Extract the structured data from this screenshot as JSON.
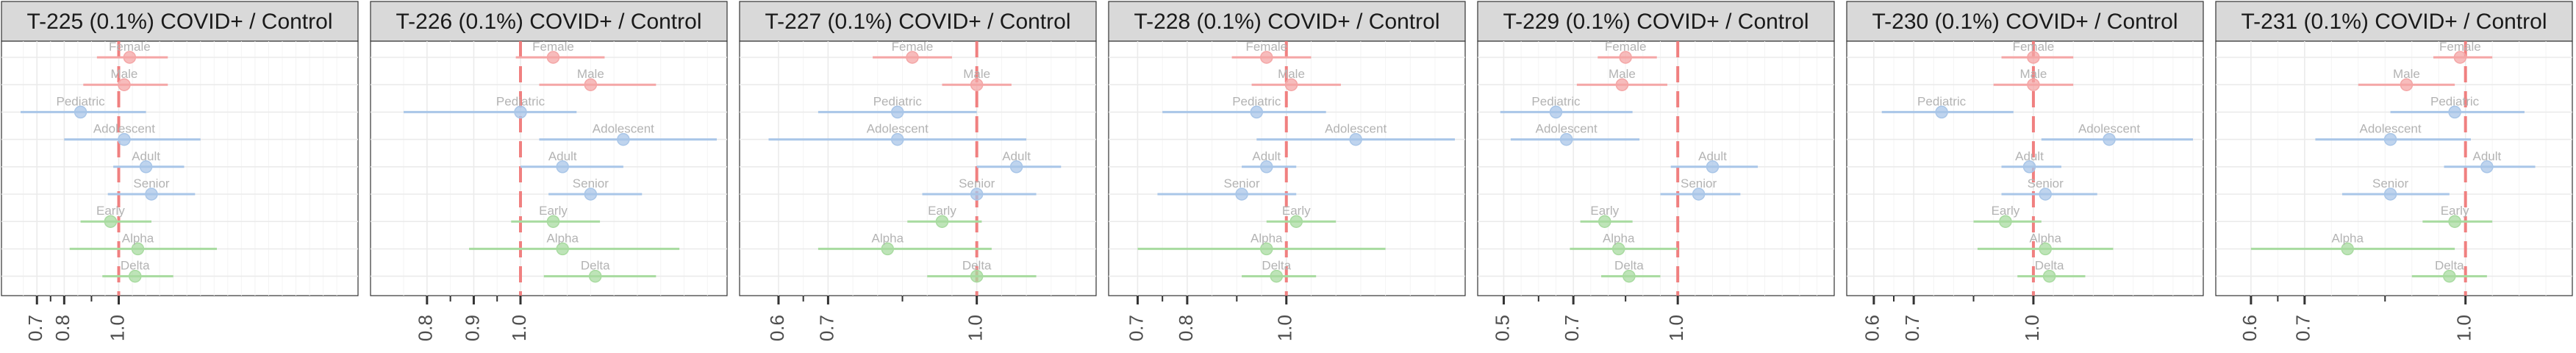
{
  "colors": {
    "sex": "#f4a6a6",
    "age": "#a9c6e8",
    "variant": "#a8dba0",
    "reference": "#f08080"
  },
  "row_labels": [
    "Female",
    "Male",
    "Pediatric",
    "Adolescent",
    "Adult",
    "Senior",
    "Early",
    "Alpha",
    "Delta"
  ],
  "row_groups": [
    "sex",
    "sex",
    "age",
    "age",
    "age",
    "age",
    "variant",
    "variant",
    "variant"
  ],
  "chart_data": [
    {
      "type": "scatter",
      "title": "T-225 (0.1%) COVID+ / Control",
      "xlim": [
        0.64,
        1.84
      ],
      "xticks": [
        0.7,
        0.8,
        1.0
      ],
      "tick_labels": [
        "0.7",
        "0.8",
        "1.0"
      ],
      "reference_x": 1.0,
      "points": [
        {
          "label": "Female",
          "x": 1.04,
          "low": 0.92,
          "high": 1.18
        },
        {
          "label": "Male",
          "x": 1.02,
          "low": 0.87,
          "high": 1.18
        },
        {
          "label": "Pediatric",
          "x": 0.86,
          "low": 0.64,
          "high": 1.1
        },
        {
          "label": "Adolescent",
          "x": 1.02,
          "low": 0.8,
          "high": 1.3
        },
        {
          "label": "Adult",
          "x": 1.1,
          "low": 0.98,
          "high": 1.24
        },
        {
          "label": "Senior",
          "x": 1.12,
          "low": 0.96,
          "high": 1.28
        },
        {
          "label": "Early",
          "x": 0.97,
          "low": 0.86,
          "high": 1.12
        },
        {
          "label": "Alpha",
          "x": 1.07,
          "low": 0.82,
          "high": 1.36
        },
        {
          "label": "Delta",
          "x": 1.06,
          "low": 0.94,
          "high": 1.2
        }
      ]
    },
    {
      "type": "scatter",
      "title": "T-226 (0.1%) COVID+ / Control",
      "xlim": [
        0.72,
        1.42
      ],
      "xticks": [
        0.8,
        0.9,
        1.0
      ],
      "tick_labels": [
        "0.8",
        "0.9",
        "1.0"
      ],
      "reference_x": 1.0,
      "points": [
        {
          "label": "Female",
          "x": 1.07,
          "low": 0.99,
          "high": 1.18
        },
        {
          "label": "Male",
          "x": 1.15,
          "low": 1.04,
          "high": 1.29
        },
        {
          "label": "Pediatric",
          "x": 1.0,
          "low": 0.75,
          "high": 1.12
        },
        {
          "label": "Adolescent",
          "x": 1.22,
          "low": 1.04,
          "high": 1.42
        },
        {
          "label": "Adult",
          "x": 1.09,
          "low": 1.0,
          "high": 1.22
        },
        {
          "label": "Senior",
          "x": 1.15,
          "low": 1.06,
          "high": 1.26
        },
        {
          "label": "Early",
          "x": 1.07,
          "low": 0.98,
          "high": 1.17
        },
        {
          "label": "Alpha",
          "x": 1.09,
          "low": 0.89,
          "high": 1.34
        },
        {
          "label": "Delta",
          "x": 1.16,
          "low": 1.05,
          "high": 1.29
        }
      ]
    },
    {
      "type": "scatter",
      "title": "T-227 (0.1%) COVID+ / Control",
      "xlim": [
        0.56,
        1.22
      ],
      "xticks": [
        0.6,
        0.7,
        1.0
      ],
      "tick_labels": [
        "0.6",
        "0.7",
        "1.0"
      ],
      "reference_x": 1.0,
      "points": [
        {
          "label": "Female",
          "x": 0.87,
          "low": 0.79,
          "high": 0.95
        },
        {
          "label": "Male",
          "x": 1.0,
          "low": 0.93,
          "high": 1.07
        },
        {
          "label": "Pediatric",
          "x": 0.84,
          "low": 0.68,
          "high": 1.0
        },
        {
          "label": "Adolescent",
          "x": 0.84,
          "low": 0.58,
          "high": 1.1
        },
        {
          "label": "Adult",
          "x": 1.08,
          "low": 1.0,
          "high": 1.17
        },
        {
          "label": "Senior",
          "x": 1.0,
          "low": 0.89,
          "high": 1.12
        },
        {
          "label": "Early",
          "x": 0.93,
          "low": 0.86,
          "high": 1.01
        },
        {
          "label": "Alpha",
          "x": 0.82,
          "low": 0.68,
          "high": 1.03
        },
        {
          "label": "Delta",
          "x": 1.0,
          "low": 0.9,
          "high": 1.12
        }
      ]
    },
    {
      "type": "scatter",
      "title": "T-228 (0.1%) COVID+ / Control",
      "xlim": [
        0.68,
        1.34
      ],
      "xticks": [
        0.7,
        0.8,
        1.0
      ],
      "tick_labels": [
        "0.7",
        "0.8",
        "1.0"
      ],
      "reference_x": 1.0,
      "points": [
        {
          "label": "Female",
          "x": 0.96,
          "low": 0.89,
          "high": 1.05
        },
        {
          "label": "Male",
          "x": 1.01,
          "low": 0.93,
          "high": 1.11
        },
        {
          "label": "Pediatric",
          "x": 0.94,
          "low": 0.75,
          "high": 1.08
        },
        {
          "label": "Adolescent",
          "x": 1.14,
          "low": 0.94,
          "high": 1.34
        },
        {
          "label": "Adult",
          "x": 0.96,
          "low": 0.91,
          "high": 1.02
        },
        {
          "label": "Senior",
          "x": 0.91,
          "low": 0.74,
          "high": 1.02
        },
        {
          "label": "Early",
          "x": 1.02,
          "low": 0.96,
          "high": 1.1
        },
        {
          "label": "Alpha",
          "x": 0.96,
          "low": 0.7,
          "high": 1.2
        },
        {
          "label": "Delta",
          "x": 0.98,
          "low": 0.91,
          "high": 1.06
        }
      ]
    },
    {
      "type": "scatter",
      "title": "T-229 (0.1%) COVID+ / Control",
      "xlim": [
        0.48,
        1.42
      ],
      "xticks": [
        0.5,
        0.7,
        1.0
      ],
      "tick_labels": [
        "0.5",
        "0.7",
        "1.0"
      ],
      "reference_x": 1.0,
      "points": [
        {
          "label": "Female",
          "x": 0.85,
          "low": 0.77,
          "high": 0.94
        },
        {
          "label": "Male",
          "x": 0.84,
          "low": 0.71,
          "high": 0.97
        },
        {
          "label": "Pediatric",
          "x": 0.65,
          "low": 0.49,
          "high": 0.87
        },
        {
          "label": "Adolescent",
          "x": 0.68,
          "low": 0.52,
          "high": 0.89
        },
        {
          "label": "Adult",
          "x": 1.1,
          "low": 0.98,
          "high": 1.23
        },
        {
          "label": "Senior",
          "x": 1.06,
          "low": 0.95,
          "high": 1.18
        },
        {
          "label": "Early",
          "x": 0.79,
          "low": 0.72,
          "high": 0.87
        },
        {
          "label": "Alpha",
          "x": 0.83,
          "low": 0.69,
          "high": 1.0
        },
        {
          "label": "Delta",
          "x": 0.86,
          "low": 0.78,
          "high": 0.95
        }
      ]
    },
    {
      "type": "scatter",
      "title": "T-230 (0.1%) COVID+ / Control",
      "xlim": [
        0.58,
        1.4
      ],
      "xticks": [
        0.6,
        0.7,
        1.0
      ],
      "tick_labels": [
        "0.6",
        "0.7",
        "1.0"
      ],
      "reference_x": 1.0,
      "points": [
        {
          "label": "Female",
          "x": 1.0,
          "low": 0.92,
          "high": 1.1
        },
        {
          "label": "Male",
          "x": 1.0,
          "low": 0.9,
          "high": 1.1
        },
        {
          "label": "Pediatric",
          "x": 0.77,
          "low": 0.62,
          "high": 0.95
        },
        {
          "label": "Adolescent",
          "x": 1.19,
          "low": 1.02,
          "high": 1.4
        },
        {
          "label": "Adult",
          "x": 0.99,
          "low": 0.92,
          "high": 1.07
        },
        {
          "label": "Senior",
          "x": 1.03,
          "low": 0.92,
          "high": 1.16
        },
        {
          "label": "Early",
          "x": 0.93,
          "low": 0.85,
          "high": 1.02
        },
        {
          "label": "Alpha",
          "x": 1.03,
          "low": 0.86,
          "high": 1.2
        },
        {
          "label": "Delta",
          "x": 1.04,
          "low": 0.96,
          "high": 1.13
        }
      ]
    },
    {
      "type": "scatter",
      "title": "T-231 (0.1%) COVID+ / Control",
      "xlim": [
        0.57,
        1.18
      ],
      "xticks": [
        0.6,
        0.7,
        1.0
      ],
      "tick_labels": [
        "0.6",
        "0.7",
        "1.0"
      ],
      "reference_x": 1.0,
      "points": [
        {
          "label": "Female",
          "x": 0.99,
          "low": 0.94,
          "high": 1.05
        },
        {
          "label": "Male",
          "x": 0.89,
          "low": 0.8,
          "high": 0.98
        },
        {
          "label": "Pediatric",
          "x": 0.98,
          "low": 0.86,
          "high": 1.11
        },
        {
          "label": "Adolescent",
          "x": 0.86,
          "low": 0.72,
          "high": 1.01
        },
        {
          "label": "Adult",
          "x": 1.04,
          "low": 0.96,
          "high": 1.13
        },
        {
          "label": "Senior",
          "x": 0.86,
          "low": 0.77,
          "high": 0.97
        },
        {
          "label": "Early",
          "x": 0.98,
          "low": 0.92,
          "high": 1.05
        },
        {
          "label": "Alpha",
          "x": 0.78,
          "low": 0.6,
          "high": 0.98
        },
        {
          "label": "Delta",
          "x": 0.97,
          "low": 0.9,
          "high": 1.04
        }
      ]
    }
  ]
}
